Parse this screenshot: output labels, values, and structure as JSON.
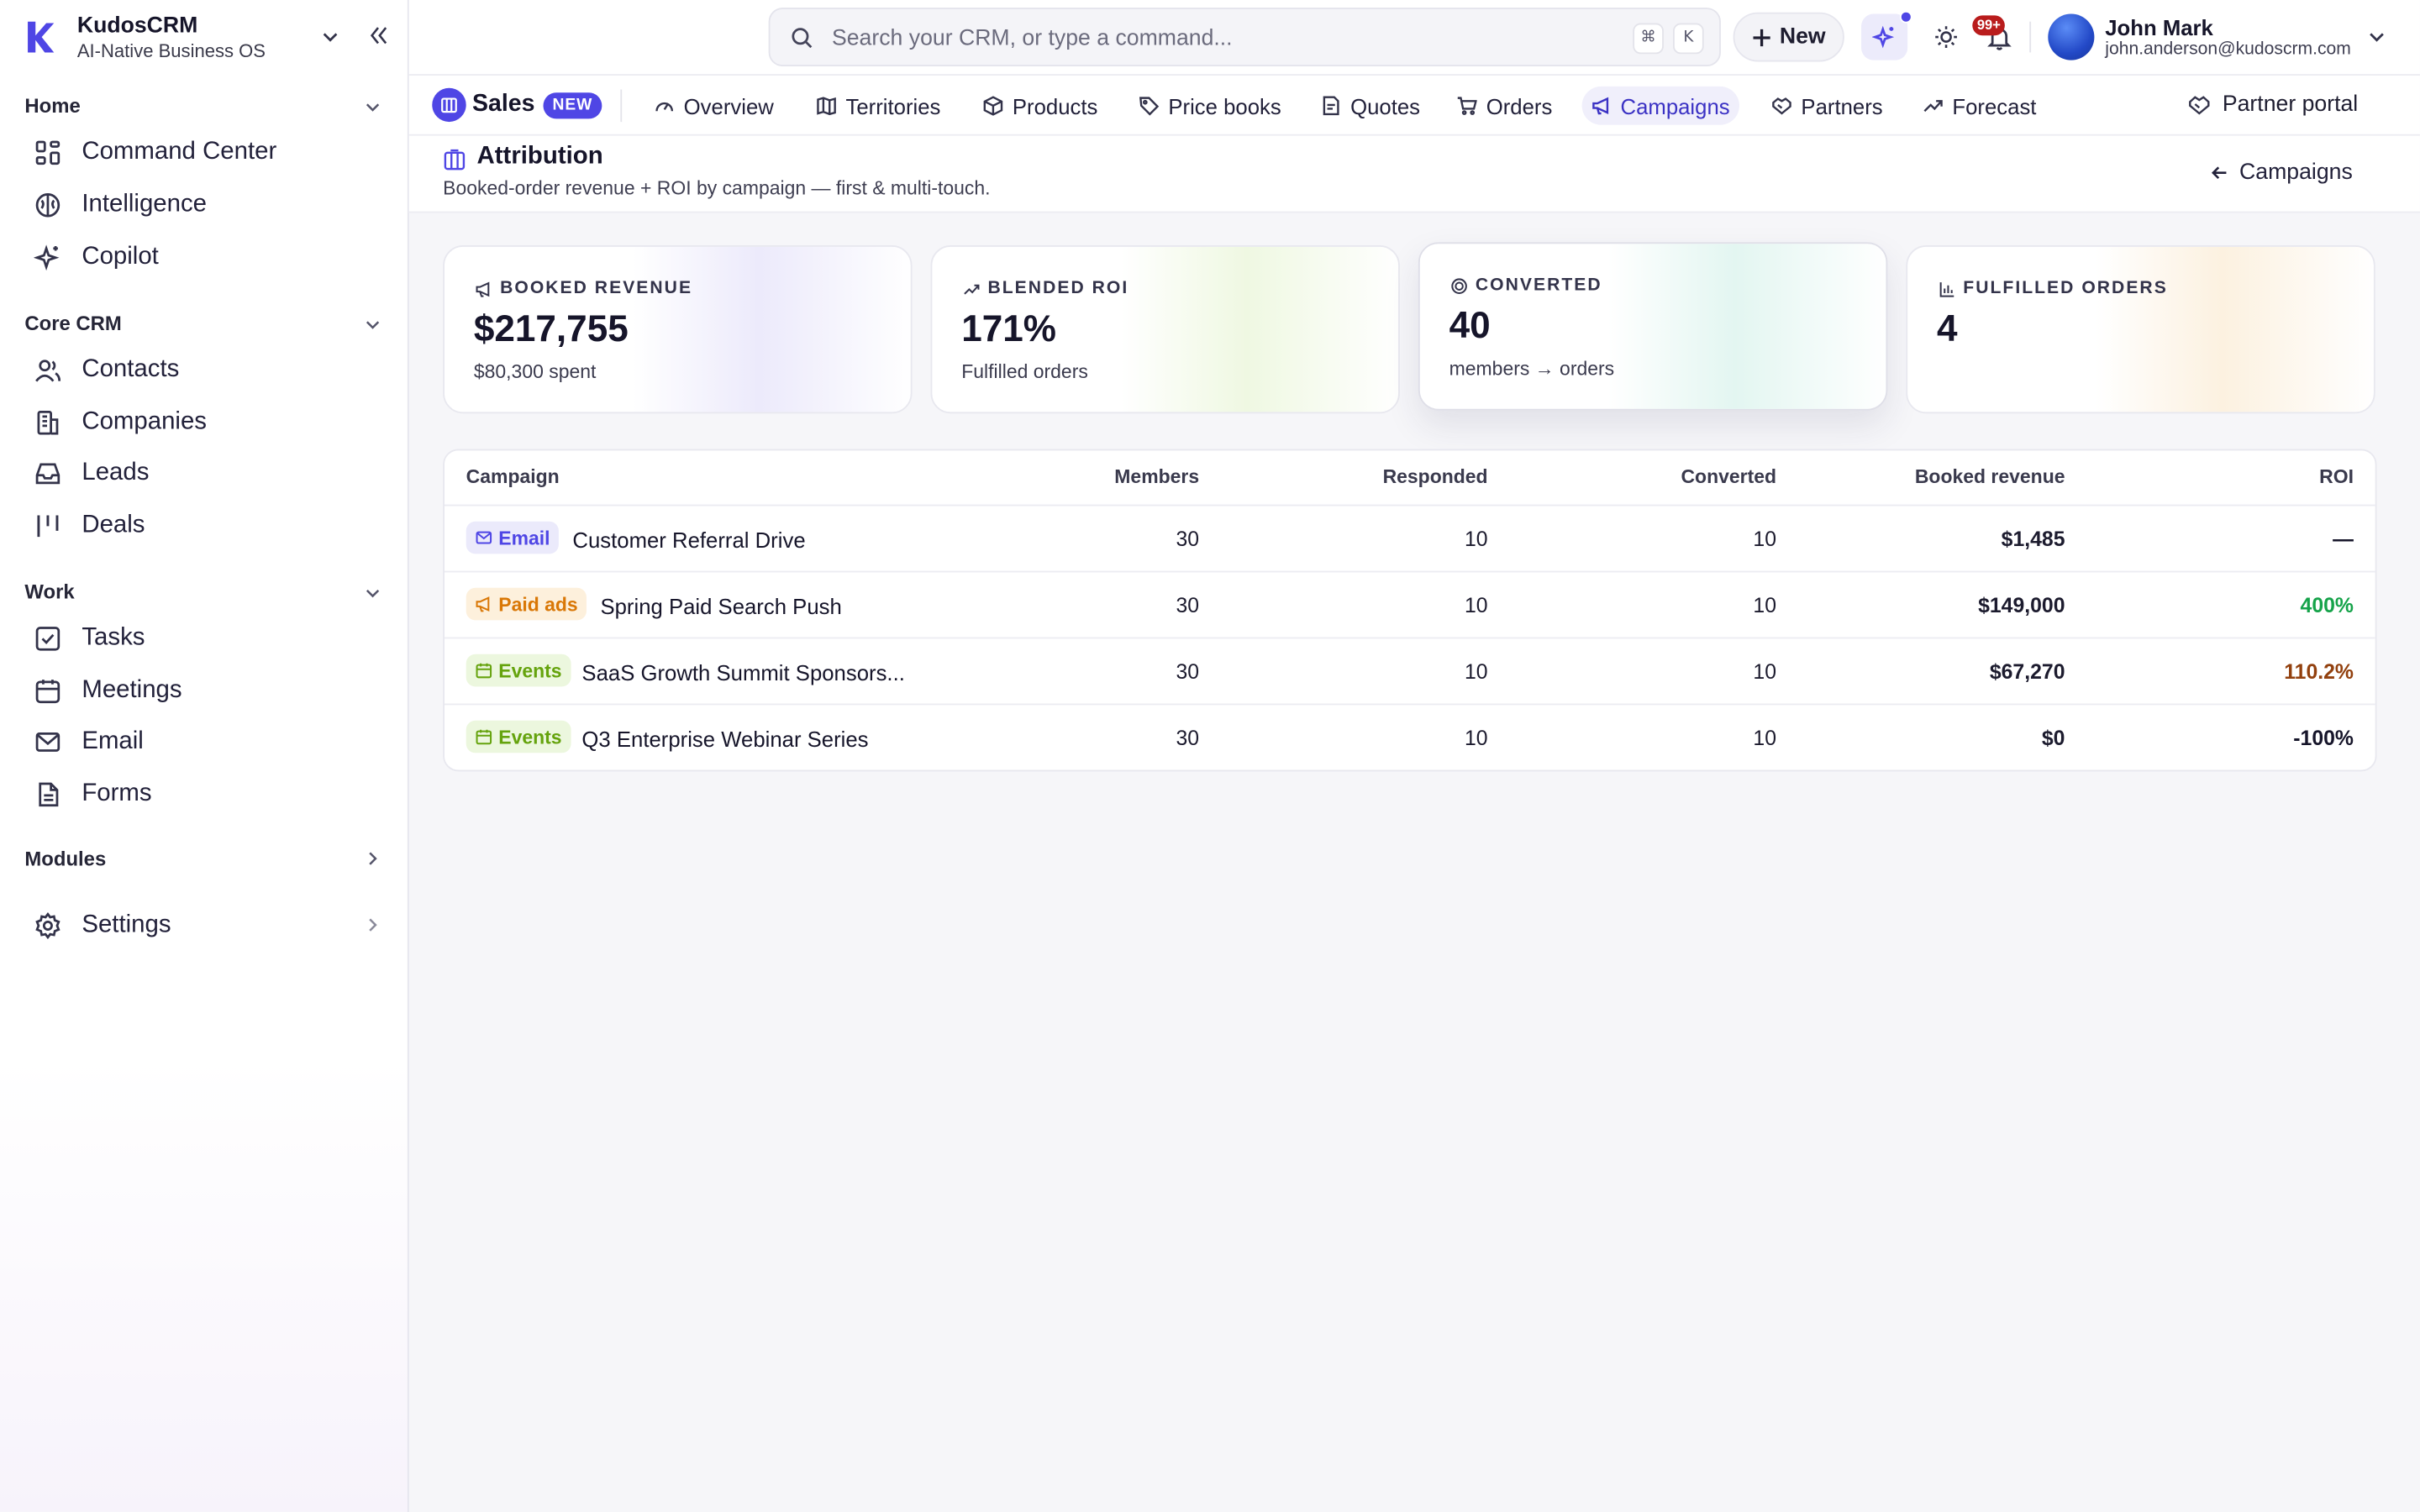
{
  "brand": {
    "name": "KudosCRM",
    "tagline": "AI-Native Business OS"
  },
  "sidebar": {
    "sections": [
      {
        "label": "Home",
        "items": [
          {
            "label": "Command Center",
            "icon": "grid-icon"
          },
          {
            "label": "Intelligence",
            "icon": "brain-icon"
          },
          {
            "label": "Copilot",
            "icon": "sparkle-icon"
          }
        ]
      },
      {
        "label": "Core CRM",
        "items": [
          {
            "label": "Contacts",
            "icon": "users-icon"
          },
          {
            "label": "Companies",
            "icon": "building-icon"
          },
          {
            "label": "Leads",
            "icon": "inbox-icon"
          },
          {
            "label": "Deals",
            "icon": "kanban-icon"
          }
        ]
      },
      {
        "label": "Work",
        "items": [
          {
            "label": "Tasks",
            "icon": "checkbox-icon"
          },
          {
            "label": "Meetings",
            "icon": "calendar-icon"
          },
          {
            "label": "Email",
            "icon": "mail-icon"
          },
          {
            "label": "Forms",
            "icon": "file-icon"
          }
        ]
      },
      {
        "label": "Modules",
        "items": []
      }
    ],
    "settings_label": "Settings"
  },
  "topbar": {
    "search_placeholder": "Search your CRM, or type a command...",
    "kbd_1": "⌘",
    "kbd_2": "K",
    "new_label": "New",
    "notifications_badge": "99+",
    "user_name": "John Mark",
    "user_email": "john.anderson@kudoscrm.com"
  },
  "module": {
    "name": "Sales",
    "badge": "NEW",
    "tabs": [
      {
        "label": "Overview",
        "icon": "gauge-icon"
      },
      {
        "label": "Territories",
        "icon": "map-icon"
      },
      {
        "label": "Products",
        "icon": "box-icon"
      },
      {
        "label": "Price books",
        "icon": "tag-icon"
      },
      {
        "label": "Quotes",
        "icon": "quote-icon"
      },
      {
        "label": "Orders",
        "icon": "cart-icon"
      },
      {
        "label": "Campaigns",
        "icon": "megaphone-icon",
        "active": true
      },
      {
        "label": "Partners",
        "icon": "handshake-icon"
      },
      {
        "label": "Forecast",
        "icon": "trend-icon"
      }
    ],
    "partner_portal_label": "Partner portal"
  },
  "page": {
    "title": "Attribution",
    "subtitle": "Booked-order revenue + ROI by campaign — first & multi-touch.",
    "back_label": "Campaigns"
  },
  "stats": [
    {
      "label": "BOOKED REVENUE",
      "value": "$217,755",
      "note": "$80,300 spent",
      "icon": "megaphone-icon",
      "tint": "#ebe9fb"
    },
    {
      "label": "BLENDED ROI",
      "value": "171%",
      "note": "Fulfilled orders",
      "icon": "trend-icon",
      "tint": "#eef8df"
    },
    {
      "label": "CONVERTED",
      "value": "40",
      "note": "members → orders",
      "icon": "target-icon",
      "tint": "#e2f6f1"
    },
    {
      "label": "FULFILLED ORDERS",
      "value": "4",
      "note": "",
      "icon": "bar-chart-icon",
      "tint": "#fcf0df"
    }
  ],
  "table": {
    "columns": [
      "Campaign",
      "Members",
      "Responded",
      "Converted",
      "Booked revenue",
      "ROI"
    ],
    "rows": [
      {
        "channel": "Email",
        "channel_icon": "mail-icon",
        "name": "Customer Referral Drive",
        "members": "30",
        "responded": "10",
        "converted": "10",
        "revenue": "$1,485",
        "roi": "—",
        "roi_color": "#16152a"
      },
      {
        "channel": "Paid ads",
        "channel_icon": "megaphone-icon",
        "name": "Spring Paid Search Push",
        "members": "30",
        "responded": "10",
        "converted": "10",
        "revenue": "$149,000",
        "roi": "400%",
        "roi_color": "#16a34a"
      },
      {
        "channel": "Events",
        "channel_icon": "calendar-icon",
        "name": "SaaS Growth Summit Sponsors...",
        "members": "30",
        "responded": "10",
        "converted": "10",
        "revenue": "$67,270",
        "roi": "110.2%",
        "roi_color": "#92400e"
      },
      {
        "channel": "Events",
        "channel_icon": "calendar-icon",
        "name": "Q3 Enterprise Webinar Series",
        "members": "30",
        "responded": "10",
        "converted": "10",
        "revenue": "$0",
        "roi": "-100%",
        "roi_color": "#16152a"
      }
    ]
  },
  "colors": {
    "accent": "#4f46e5",
    "email_chip_bg": "#ebeafb",
    "email_chip_fg": "#4f46e5",
    "paid_chip_bg": "#fdf0dc",
    "paid_chip_fg": "#d97706",
    "events_chip_bg": "#ecf7de",
    "events_chip_fg": "#65a30d"
  }
}
